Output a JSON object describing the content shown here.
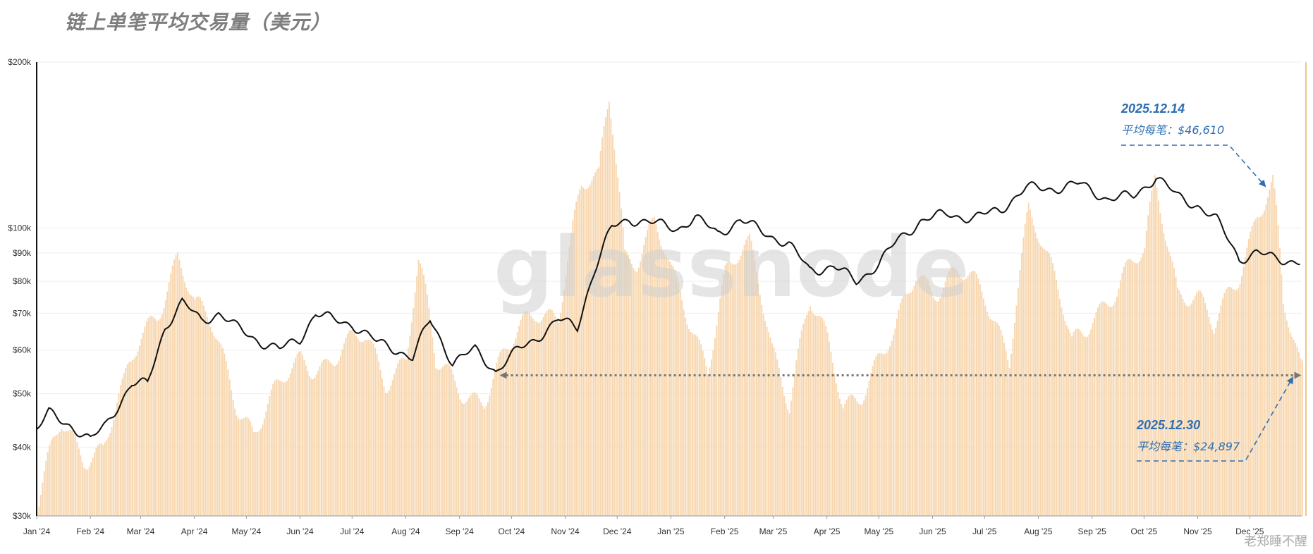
{
  "page": {
    "title": "链上单笔平均交易量（美元）",
    "watermark": "glassnode",
    "footer": "老郑睡不醒"
  },
  "annotations": [
    {
      "date": "2025.12.14",
      "label": "平均每笔：$46,610"
    },
    {
      "date": "2025.12.30",
      "label": "平均每笔：$24,897"
    }
  ],
  "colors": {
    "bar": "#f7d7b0",
    "line": "#111111",
    "annotation": "#2f6fb0",
    "dotted_arrow": "#777777"
  },
  "chart_data": {
    "type": "bar+line",
    "y_scale": "log",
    "ylim": [
      30000,
      200000
    ],
    "y_ticks": [
      {
        "value": 30000,
        "label": "$30k"
      },
      {
        "value": 40000,
        "label": "$40k"
      },
      {
        "value": 50000,
        "label": "$50k"
      },
      {
        "value": 60000,
        "label": "$60k"
      },
      {
        "value": 70000,
        "label": "$70k"
      },
      {
        "value": 80000,
        "label": "$80k"
      },
      {
        "value": 90000,
        "label": "$90k"
      },
      {
        "value": 100000,
        "label": "$100k"
      },
      {
        "value": 200000,
        "label": "$200k"
      }
    ],
    "x_tick_labels": [
      "Jan '24",
      "Feb '24",
      "Mar '24",
      "Apr '24",
      "May '24",
      "Jun '24",
      "Jul '24",
      "Aug '24",
      "Sep '24",
      "Oct '24",
      "Nov '24",
      "Dec '24",
      "Jan '25",
      "Feb '25",
      "Mar '25",
      "Apr '25",
      "May '25",
      "Jun '25",
      "Jul '25",
      "Aug '25",
      "Sep '25",
      "Oct '25",
      "Nov '25",
      "Dec '25"
    ],
    "x_range": [
      "2024-01-01",
      "2025-12-31"
    ],
    "series": [
      {
        "kind": "bars",
        "points": [
          [
            "2024-01-01",
            30000
          ],
          [
            "2024-01-15",
            44000
          ],
          [
            "2024-01-28",
            40000
          ],
          [
            "2024-02-08",
            40000
          ],
          [
            "2024-02-20",
            50000
          ],
          [
            "2024-03-01",
            63000
          ],
          [
            "2024-03-10",
            72000
          ],
          [
            "2024-03-22",
            90000
          ],
          [
            "2024-04-01",
            70000
          ],
          [
            "2024-04-10",
            66000
          ],
          [
            "2024-04-25",
            50000
          ],
          [
            "2024-05-05",
            43000
          ],
          [
            "2024-05-20",
            50000
          ],
          [
            "2024-06-01",
            58000
          ],
          [
            "2024-06-15",
            58000
          ],
          [
            "2024-06-28",
            60000
          ],
          [
            "2024-07-08",
            62000
          ],
          [
            "2024-07-20",
            54000
          ],
          [
            "2024-08-01",
            60000
          ],
          [
            "2024-08-08",
            86000
          ],
          [
            "2024-08-18",
            55000
          ],
          [
            "2024-09-01",
            52000
          ],
          [
            "2024-09-15",
            50000
          ],
          [
            "2024-10-01",
            60000
          ],
          [
            "2024-10-15",
            72000
          ],
          [
            "2024-10-28",
            72000
          ],
          [
            "2024-11-10",
            115000
          ],
          [
            "2024-11-20",
            120000
          ],
          [
            "2024-11-26",
            175000
          ],
          [
            "2024-12-05",
            92000
          ],
          [
            "2024-12-12",
            90000
          ],
          [
            "2024-12-22",
            100000
          ],
          [
            "2025-01-01",
            80000
          ],
          [
            "2025-01-10",
            70000
          ],
          [
            "2025-01-22",
            58000
          ],
          [
            "2025-02-01",
            82000
          ],
          [
            "2025-02-15",
            90000
          ],
          [
            "2025-02-28",
            62000
          ],
          [
            "2025-03-10",
            50000
          ],
          [
            "2025-03-22",
            72000
          ],
          [
            "2025-04-01",
            60000
          ],
          [
            "2025-04-10",
            48000
          ],
          [
            "2025-04-20",
            52000
          ],
          [
            "2025-05-01",
            58000
          ],
          [
            "2025-05-10",
            62000
          ],
          [
            "2025-05-22",
            82000
          ],
          [
            "2025-06-01",
            80000
          ],
          [
            "2025-06-15",
            84000
          ],
          [
            "2025-07-01",
            72000
          ],
          [
            "2025-07-15",
            60000
          ],
          [
            "2025-07-26",
            110000
          ],
          [
            "2025-08-05",
            86000
          ],
          [
            "2025-08-20",
            62000
          ],
          [
            "2025-09-01",
            72000
          ],
          [
            "2025-09-15",
            75000
          ],
          [
            "2025-10-01",
            90000
          ],
          [
            "2025-10-07",
            125000
          ],
          [
            "2025-10-20",
            78000
          ],
          [
            "2025-11-01",
            72000
          ],
          [
            "2025-11-10",
            64000
          ],
          [
            "2025-11-25",
            86000
          ],
          [
            "2025-12-05",
            108000
          ],
          [
            "2025-12-14",
            118000
          ],
          [
            "2025-12-20",
            70000
          ],
          [
            "2025-12-30",
            55000
          ]
        ]
      },
      {
        "kind": "line",
        "points": [
          [
            "2024-01-01",
            43000
          ],
          [
            "2024-01-08",
            46000
          ],
          [
            "2024-01-20",
            44000
          ],
          [
            "2024-02-01",
            41000
          ],
          [
            "2024-02-10",
            44000
          ],
          [
            "2024-02-25",
            52000
          ],
          [
            "2024-03-05",
            52000
          ],
          [
            "2024-03-15",
            66000
          ],
          [
            "2024-03-25",
            73000
          ],
          [
            "2024-04-05",
            68000
          ],
          [
            "2024-04-15",
            70000
          ],
          [
            "2024-04-25",
            66000
          ],
          [
            "2024-05-10",
            62000
          ],
          [
            "2024-05-20",
            60000
          ],
          [
            "2024-06-01",
            63000
          ],
          [
            "2024-06-10",
            70000
          ],
          [
            "2024-06-20",
            68000
          ],
          [
            "2024-07-01",
            67000
          ],
          [
            "2024-07-15",
            62000
          ],
          [
            "2024-07-28",
            60000
          ],
          [
            "2024-08-05",
            58000
          ],
          [
            "2024-08-15",
            68000
          ],
          [
            "2024-08-28",
            57000
          ],
          [
            "2024-09-10",
            60000
          ],
          [
            "2024-09-22",
            55000
          ],
          [
            "2024-10-05",
            60000
          ],
          [
            "2024-10-15",
            63000
          ],
          [
            "2024-10-28",
            68000
          ],
          [
            "2024-11-08",
            66000
          ],
          [
            "2024-11-18",
            84000
          ],
          [
            "2024-11-28",
            100000
          ],
          [
            "2024-12-08",
            104000
          ],
          [
            "2024-12-20",
            102000
          ],
          [
            "2025-01-05",
            100000
          ],
          [
            "2025-01-15",
            104000
          ],
          [
            "2025-01-28",
            98000
          ],
          [
            "2025-02-10",
            103000
          ],
          [
            "2025-02-25",
            98000
          ],
          [
            "2025-03-10",
            93000
          ],
          [
            "2025-03-22",
            84000
          ],
          [
            "2025-04-05",
            85000
          ],
          [
            "2025-04-18",
            80000
          ],
          [
            "2025-05-01",
            86000
          ],
          [
            "2025-05-12",
            95000
          ],
          [
            "2025-05-25",
            103000
          ],
          [
            "2025-06-10",
            106000
          ],
          [
            "2025-06-25",
            104000
          ],
          [
            "2025-07-10",
            108000
          ],
          [
            "2025-07-25",
            118000
          ],
          [
            "2025-08-10",
            118000
          ],
          [
            "2025-08-25",
            120000
          ],
          [
            "2025-09-10",
            113000
          ],
          [
            "2025-09-25",
            114000
          ],
          [
            "2025-10-08",
            124000
          ],
          [
            "2025-10-20",
            114000
          ],
          [
            "2025-11-01",
            110000
          ],
          [
            "2025-11-12",
            103000
          ],
          [
            "2025-11-25",
            88000
          ],
          [
            "2025-12-05",
            90000
          ],
          [
            "2025-12-15",
            88000
          ],
          [
            "2025-12-30",
            87000
          ]
        ]
      }
    ],
    "reference": {
      "type": "double-arrow",
      "from": "2024-09-25",
      "to": "2025-12-30",
      "value": 54000
    }
  }
}
